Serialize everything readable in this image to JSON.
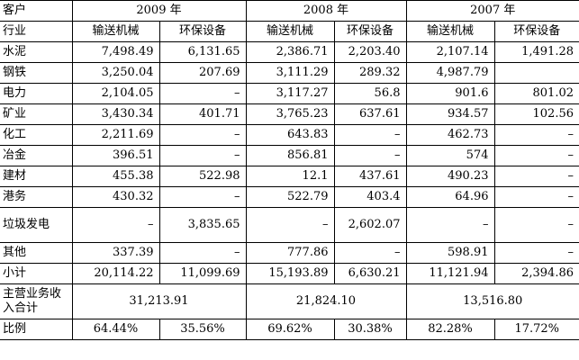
{
  "header": {
    "customer_label": "客户",
    "industry_label": "行业",
    "years": [
      "2009 年",
      "2008 年",
      "2007 年"
    ],
    "sub_headers": [
      "输送机械",
      "环保设备"
    ]
  },
  "rows": [
    {
      "label": "水泥",
      "v": [
        "7,498.49",
        "6,131.65",
        "2,386.71",
        "2,203.40",
        "2,107.14",
        "1,491.28"
      ]
    },
    {
      "label": "钢铁",
      "v": [
        "3,250.04",
        "207.69",
        "3,111.29",
        "289.32",
        "4,987.79",
        ""
      ]
    },
    {
      "label": "电力",
      "v": [
        "2,104.05",
        "–",
        "3,117.27",
        "56.8",
        "901.6",
        "801.02"
      ]
    },
    {
      "label": "矿业",
      "v": [
        "3,430.34",
        "401.71",
        "3,765.23",
        "637.61",
        "934.57",
        "102.56"
      ]
    },
    {
      "label": "化工",
      "v": [
        "2,211.69",
        "–",
        "643.83",
        "–",
        "462.73",
        "–"
      ]
    },
    {
      "label": "冶金",
      "v": [
        "396.51",
        "–",
        "856.81",
        "–",
        "574",
        "–"
      ]
    },
    {
      "label": "建材",
      "v": [
        "455.38",
        "522.98",
        "12.1",
        "437.61",
        "490.23",
        "–"
      ]
    },
    {
      "label": "港务",
      "v": [
        "430.32",
        "–",
        "522.79",
        "403.4",
        "64.96",
        "–"
      ]
    },
    {
      "label": "垃圾发电",
      "v": [
        "–",
        "3,835.65",
        "–",
        "2,602.07",
        "–",
        "–"
      ]
    },
    {
      "label": "其他",
      "v": [
        "337.39",
        "–",
        "777.86",
        "–",
        "598.91",
        "–"
      ]
    },
    {
      "label": "小计",
      "v": [
        "20,114.22",
        "11,099.69",
        "15,193.89",
        "6,630.21",
        "11,121.94",
        "2,394.86"
      ]
    }
  ],
  "total_row": {
    "label": "主营业务收入合计",
    "v": [
      "31,213.91",
      "21,824.10",
      "13,516.80"
    ]
  },
  "ratio_row": {
    "label": "比例",
    "v": [
      "64.44%",
      "35.56%",
      "69.62%",
      "30.38%",
      "82.28%",
      "17.72%"
    ]
  }
}
